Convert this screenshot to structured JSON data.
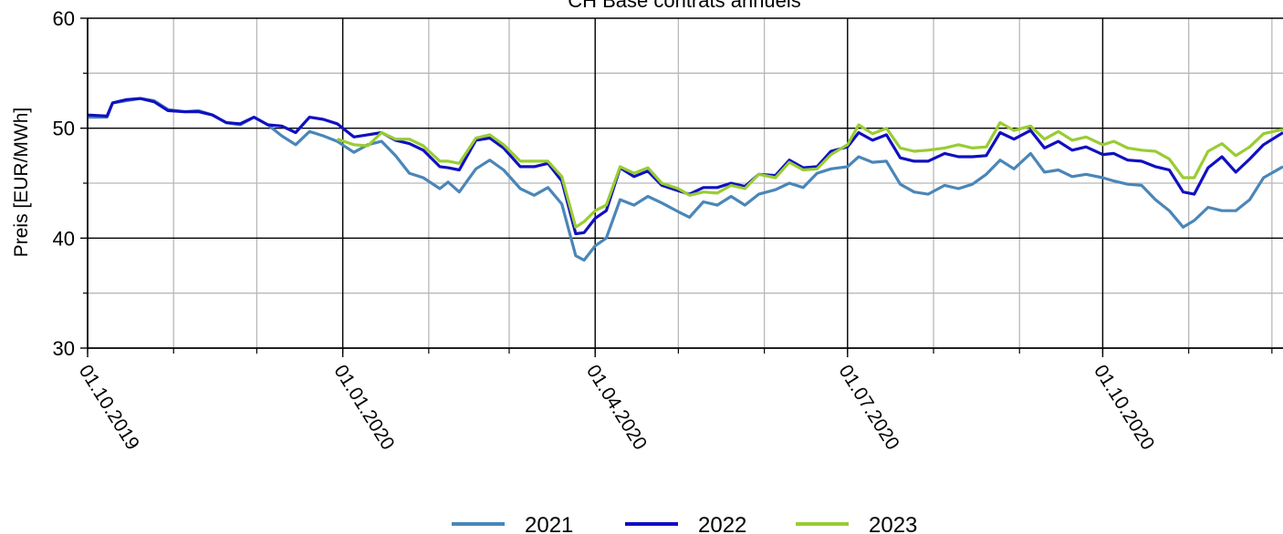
{
  "chart_data": {
    "type": "line",
    "title": "CH Base contrats annuels",
    "xlabel": "",
    "ylabel": "Preis [EUR/MWh]",
    "xlim": [
      "2019-10-01",
      "2020-12-05"
    ],
    "ylim": [
      30,
      60
    ],
    "yticks": [
      30,
      40,
      50,
      60
    ],
    "xticks": [
      {
        "date": "2019-10-01",
        "label": "01.10.2019"
      },
      {
        "date": "2020-01-01",
        "label": "01.01.2020"
      },
      {
        "date": "2020-04-01",
        "label": "01.04.2020"
      },
      {
        "date": "2020-07-01",
        "label": "01.07.2020"
      },
      {
        "date": "2020-10-01",
        "label": "01.10.2020"
      }
    ],
    "grid": true,
    "legend_position": "bottom-center",
    "series": [
      {
        "name": "2021",
        "color": "#4a86b8",
        "points": [
          [
            "2019-10-01",
            51.0
          ],
          [
            "2019-10-08",
            51.0
          ],
          [
            "2019-10-10",
            52.3
          ],
          [
            "2019-10-15",
            52.5
          ],
          [
            "2019-10-20",
            52.7
          ],
          [
            "2019-10-25",
            52.5
          ],
          [
            "2019-10-30",
            51.7
          ],
          [
            "2019-11-05",
            51.5
          ],
          [
            "2019-11-10",
            51.6
          ],
          [
            "2019-11-15",
            51.2
          ],
          [
            "2019-11-20",
            50.5
          ],
          [
            "2019-11-25",
            50.3
          ],
          [
            "2019-11-30",
            51.0
          ],
          [
            "2019-12-05",
            50.3
          ],
          [
            "2019-12-10",
            49.3
          ],
          [
            "2019-12-15",
            48.5
          ],
          [
            "2019-12-20",
            49.7
          ],
          [
            "2019-12-25",
            49.3
          ],
          [
            "2019-12-30",
            48.8
          ],
          [
            "2020-01-05",
            47.8
          ],
          [
            "2020-01-10",
            48.5
          ],
          [
            "2020-01-15",
            48.8
          ],
          [
            "2020-01-20",
            47.5
          ],
          [
            "2020-01-25",
            45.9
          ],
          [
            "2020-01-30",
            45.5
          ],
          [
            "2020-02-05",
            44.5
          ],
          [
            "2020-02-08",
            45.1
          ],
          [
            "2020-02-12",
            44.2
          ],
          [
            "2020-02-18",
            46.3
          ],
          [
            "2020-02-23",
            47.1
          ],
          [
            "2020-02-28",
            46.2
          ],
          [
            "2020-03-05",
            44.5
          ],
          [
            "2020-03-10",
            43.9
          ],
          [
            "2020-03-15",
            44.6
          ],
          [
            "2020-03-20",
            43.1
          ],
          [
            "2020-03-25",
            38.4
          ],
          [
            "2020-03-28",
            38.0
          ],
          [
            "2020-04-01",
            39.3
          ],
          [
            "2020-04-05",
            40.0
          ],
          [
            "2020-04-10",
            43.5
          ],
          [
            "2020-04-15",
            43.0
          ],
          [
            "2020-04-20",
            43.8
          ],
          [
            "2020-04-25",
            43.2
          ],
          [
            "2020-05-01",
            42.4
          ],
          [
            "2020-05-05",
            41.9
          ],
          [
            "2020-05-10",
            43.3
          ],
          [
            "2020-05-15",
            43.0
          ],
          [
            "2020-05-20",
            43.8
          ],
          [
            "2020-05-25",
            43.0
          ],
          [
            "2020-05-30",
            44.0
          ],
          [
            "2020-06-05",
            44.4
          ],
          [
            "2020-06-10",
            45.0
          ],
          [
            "2020-06-15",
            44.6
          ],
          [
            "2020-06-20",
            45.9
          ],
          [
            "2020-06-25",
            46.3
          ],
          [
            "2020-07-01",
            46.5
          ],
          [
            "2020-07-05",
            47.4
          ],
          [
            "2020-07-10",
            46.9
          ],
          [
            "2020-07-15",
            47.0
          ],
          [
            "2020-07-20",
            44.9
          ],
          [
            "2020-07-25",
            44.2
          ],
          [
            "2020-07-30",
            44.0
          ],
          [
            "2020-08-05",
            44.8
          ],
          [
            "2020-08-10",
            44.5
          ],
          [
            "2020-08-15",
            44.9
          ],
          [
            "2020-08-20",
            45.8
          ],
          [
            "2020-08-25",
            47.1
          ],
          [
            "2020-08-30",
            46.3
          ],
          [
            "2020-09-05",
            47.7
          ],
          [
            "2020-09-10",
            46.0
          ],
          [
            "2020-09-15",
            46.2
          ],
          [
            "2020-09-20",
            45.6
          ],
          [
            "2020-09-25",
            45.8
          ],
          [
            "2020-10-01",
            45.5
          ],
          [
            "2020-10-05",
            45.2
          ],
          [
            "2020-10-10",
            44.9
          ],
          [
            "2020-10-15",
            44.8
          ],
          [
            "2020-10-20",
            43.5
          ],
          [
            "2020-10-25",
            42.5
          ],
          [
            "2020-10-30",
            41.0
          ],
          [
            "2020-11-03",
            41.6
          ],
          [
            "2020-11-08",
            42.8
          ],
          [
            "2020-11-13",
            42.5
          ],
          [
            "2020-11-18",
            42.5
          ],
          [
            "2020-11-23",
            43.5
          ],
          [
            "2020-11-28",
            45.5
          ],
          [
            "2020-12-05",
            46.5
          ]
        ]
      },
      {
        "name": "2022",
        "color": "#1010c0",
        "points": [
          [
            "2019-10-01",
            51.2
          ],
          [
            "2019-10-08",
            51.1
          ],
          [
            "2019-10-10",
            52.3
          ],
          [
            "2019-10-15",
            52.6
          ],
          [
            "2019-10-20",
            52.7
          ],
          [
            "2019-10-25",
            52.4
          ],
          [
            "2019-10-30",
            51.6
          ],
          [
            "2019-11-05",
            51.5
          ],
          [
            "2019-11-10",
            51.5
          ],
          [
            "2019-11-15",
            51.2
          ],
          [
            "2019-11-20",
            50.5
          ],
          [
            "2019-11-25",
            50.4
          ],
          [
            "2019-11-30",
            51.0
          ],
          [
            "2019-12-05",
            50.3
          ],
          [
            "2019-12-10",
            50.2
          ],
          [
            "2019-12-15",
            49.6
          ],
          [
            "2019-12-20",
            51.0
          ],
          [
            "2019-12-25",
            50.8
          ],
          [
            "2019-12-30",
            50.4
          ],
          [
            "2020-01-05",
            49.2
          ],
          [
            "2020-01-10",
            49.4
          ],
          [
            "2020-01-15",
            49.6
          ],
          [
            "2020-01-20",
            48.9
          ],
          [
            "2020-01-25",
            48.6
          ],
          [
            "2020-01-30",
            48.0
          ],
          [
            "2020-02-05",
            46.5
          ],
          [
            "2020-02-08",
            46.4
          ],
          [
            "2020-02-12",
            46.2
          ],
          [
            "2020-02-18",
            48.9
          ],
          [
            "2020-02-23",
            49.1
          ],
          [
            "2020-02-28",
            48.2
          ],
          [
            "2020-03-05",
            46.5
          ],
          [
            "2020-03-10",
            46.5
          ],
          [
            "2020-03-15",
            46.8
          ],
          [
            "2020-03-20",
            45.2
          ],
          [
            "2020-03-25",
            40.4
          ],
          [
            "2020-03-28",
            40.5
          ],
          [
            "2020-04-01",
            41.8
          ],
          [
            "2020-04-05",
            42.5
          ],
          [
            "2020-04-10",
            46.4
          ],
          [
            "2020-04-15",
            45.6
          ],
          [
            "2020-04-20",
            46.1
          ],
          [
            "2020-04-25",
            44.8
          ],
          [
            "2020-05-01",
            44.3
          ],
          [
            "2020-05-05",
            44.0
          ],
          [
            "2020-05-10",
            44.6
          ],
          [
            "2020-05-15",
            44.6
          ],
          [
            "2020-05-20",
            45.0
          ],
          [
            "2020-05-25",
            44.7
          ],
          [
            "2020-05-30",
            45.8
          ],
          [
            "2020-06-05",
            45.7
          ],
          [
            "2020-06-10",
            47.1
          ],
          [
            "2020-06-15",
            46.4
          ],
          [
            "2020-06-20",
            46.5
          ],
          [
            "2020-06-25",
            47.9
          ],
          [
            "2020-07-01",
            48.3
          ],
          [
            "2020-07-05",
            49.6
          ],
          [
            "2020-07-10",
            48.9
          ],
          [
            "2020-07-15",
            49.4
          ],
          [
            "2020-07-20",
            47.3
          ],
          [
            "2020-07-25",
            47.0
          ],
          [
            "2020-07-30",
            47.0
          ],
          [
            "2020-08-05",
            47.7
          ],
          [
            "2020-08-10",
            47.4
          ],
          [
            "2020-08-15",
            47.4
          ],
          [
            "2020-08-20",
            47.5
          ],
          [
            "2020-08-25",
            49.6
          ],
          [
            "2020-08-30",
            49.0
          ],
          [
            "2020-09-05",
            49.8
          ],
          [
            "2020-09-10",
            48.2
          ],
          [
            "2020-09-15",
            48.8
          ],
          [
            "2020-09-20",
            48.0
          ],
          [
            "2020-09-25",
            48.3
          ],
          [
            "2020-10-01",
            47.6
          ],
          [
            "2020-10-05",
            47.7
          ],
          [
            "2020-10-10",
            47.1
          ],
          [
            "2020-10-15",
            47.0
          ],
          [
            "2020-10-20",
            46.5
          ],
          [
            "2020-10-25",
            46.2
          ],
          [
            "2020-10-30",
            44.2
          ],
          [
            "2020-11-03",
            44.0
          ],
          [
            "2020-11-08",
            46.4
          ],
          [
            "2020-11-13",
            47.4
          ],
          [
            "2020-11-18",
            46.0
          ],
          [
            "2020-11-23",
            47.2
          ],
          [
            "2020-11-28",
            48.5
          ],
          [
            "2020-12-05",
            49.6
          ]
        ]
      },
      {
        "name": "2023",
        "color": "#99cc33",
        "points": [
          [
            "2019-12-30",
            49.0
          ],
          [
            "2020-01-05",
            48.5
          ],
          [
            "2020-01-10",
            48.4
          ],
          [
            "2020-01-15",
            49.6
          ],
          [
            "2020-01-20",
            49.0
          ],
          [
            "2020-01-25",
            49.0
          ],
          [
            "2020-01-30",
            48.4
          ],
          [
            "2020-02-05",
            47.0
          ],
          [
            "2020-02-08",
            47.0
          ],
          [
            "2020-02-12",
            46.8
          ],
          [
            "2020-02-18",
            49.1
          ],
          [
            "2020-02-23",
            49.4
          ],
          [
            "2020-02-28",
            48.5
          ],
          [
            "2020-03-05",
            47.0
          ],
          [
            "2020-03-10",
            47.0
          ],
          [
            "2020-03-15",
            47.0
          ],
          [
            "2020-03-20",
            45.6
          ],
          [
            "2020-03-25",
            41.0
          ],
          [
            "2020-03-28",
            41.5
          ],
          [
            "2020-04-01",
            42.5
          ],
          [
            "2020-04-05",
            43.0
          ],
          [
            "2020-04-10",
            46.5
          ],
          [
            "2020-04-15",
            45.9
          ],
          [
            "2020-04-20",
            46.4
          ],
          [
            "2020-04-25",
            45.0
          ],
          [
            "2020-05-01",
            44.5
          ],
          [
            "2020-05-05",
            43.9
          ],
          [
            "2020-05-10",
            44.2
          ],
          [
            "2020-05-15",
            44.1
          ],
          [
            "2020-05-20",
            44.8
          ],
          [
            "2020-05-25",
            44.5
          ],
          [
            "2020-05-30",
            45.8
          ],
          [
            "2020-06-05",
            45.5
          ],
          [
            "2020-06-10",
            46.9
          ],
          [
            "2020-06-15",
            46.2
          ],
          [
            "2020-06-20",
            46.3
          ],
          [
            "2020-06-25",
            47.6
          ],
          [
            "2020-07-01",
            48.5
          ],
          [
            "2020-07-05",
            50.3
          ],
          [
            "2020-07-10",
            49.5
          ],
          [
            "2020-07-15",
            50.0
          ],
          [
            "2020-07-20",
            48.2
          ],
          [
            "2020-07-25",
            47.9
          ],
          [
            "2020-07-30",
            48.0
          ],
          [
            "2020-08-05",
            48.2
          ],
          [
            "2020-08-10",
            48.5
          ],
          [
            "2020-08-15",
            48.2
          ],
          [
            "2020-08-20",
            48.3
          ],
          [
            "2020-08-25",
            50.5
          ],
          [
            "2020-08-30",
            49.8
          ],
          [
            "2020-09-05",
            50.2
          ],
          [
            "2020-09-10",
            49.0
          ],
          [
            "2020-09-15",
            49.7
          ],
          [
            "2020-09-20",
            48.9
          ],
          [
            "2020-09-25",
            49.2
          ],
          [
            "2020-10-01",
            48.5
          ],
          [
            "2020-10-05",
            48.8
          ],
          [
            "2020-10-10",
            48.2
          ],
          [
            "2020-10-15",
            48.0
          ],
          [
            "2020-10-20",
            47.9
          ],
          [
            "2020-10-25",
            47.2
          ],
          [
            "2020-10-30",
            45.5
          ],
          [
            "2020-11-03",
            45.5
          ],
          [
            "2020-11-08",
            47.9
          ],
          [
            "2020-11-13",
            48.6
          ],
          [
            "2020-11-18",
            47.5
          ],
          [
            "2020-11-23",
            48.3
          ],
          [
            "2020-11-28",
            49.5
          ],
          [
            "2020-12-05",
            49.9
          ]
        ]
      }
    ]
  }
}
